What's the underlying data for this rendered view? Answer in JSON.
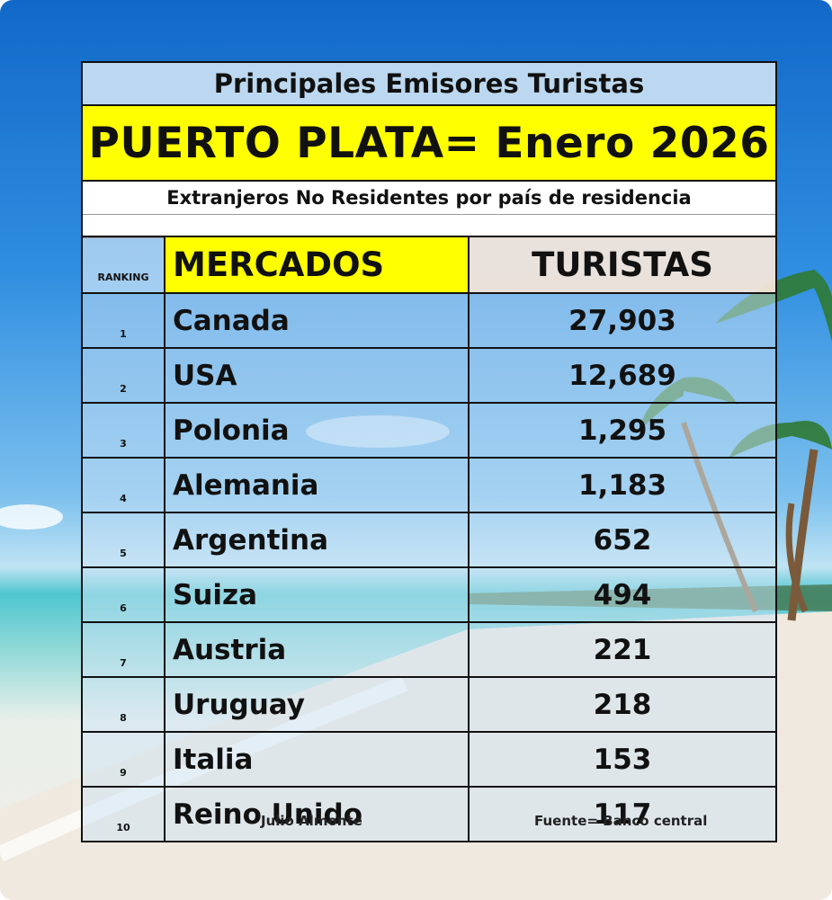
{
  "title": "Principales Emisores Turistas",
  "headline": "PUERTO PLATA= Enero 2026",
  "subtitle": "Extranjeros No Residentes por país de residencia",
  "table": {
    "headers": {
      "ranking": "RANKING",
      "mercados": "MERCADOS",
      "turistas": "TURISTAS"
    },
    "rows": [
      {
        "rank": "1",
        "country": "Canada",
        "tourists": "27,903"
      },
      {
        "rank": "2",
        "country": "USA",
        "tourists": "12,689"
      },
      {
        "rank": "3",
        "country": "Polonia",
        "tourists": "1,295"
      },
      {
        "rank": "4",
        "country": "Alemania",
        "tourists": "1,183"
      },
      {
        "rank": "5",
        "country": "Argentina",
        "tourists": "652"
      },
      {
        "rank": "6",
        "country": "Suiza",
        "tourists": "494"
      },
      {
        "rank": "7",
        "country": "Austria",
        "tourists": "221"
      },
      {
        "rank": "8",
        "country": "Uruguay",
        "tourists": "218"
      },
      {
        "rank": "9",
        "country": "Italia",
        "tourists": "153"
      },
      {
        "rank": "10",
        "country": "Reino Unido",
        "tourists": "117"
      }
    ]
  },
  "footer": {
    "author": "Julio Almonte",
    "source": "Fuente= Banco central"
  },
  "colors": {
    "highlight_yellow": "#ffff00",
    "title_blue": "#bcd8f0",
    "header_peach": "#fae8da"
  },
  "background_image": "tropical-beach-with-palm-trees"
}
